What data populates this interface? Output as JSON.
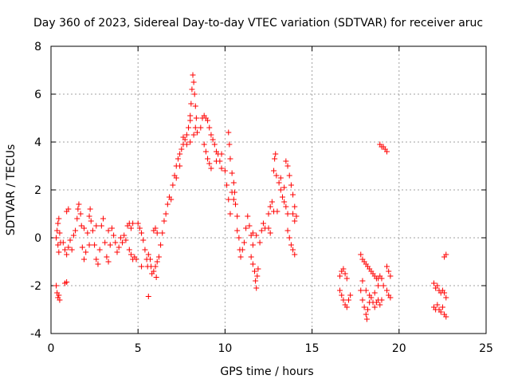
{
  "chart_data": {
    "type": "scatter",
    "title": "Day 360 of 2023, Sidereal Day-to-day VTEC variation (SDTVAR) for receiver aruc",
    "xlabel": "GPS time / hours",
    "ylabel": "SDTVAR / TECUs",
    "xlim": [
      0,
      25
    ],
    "ylim": [
      -4,
      8
    ],
    "xticks": [
      0,
      5,
      10,
      15,
      20,
      25
    ],
    "yticks": [
      -4,
      -2,
      0,
      2,
      4,
      6,
      8
    ],
    "xtick_labels": [
      "0",
      "5",
      "10",
      "15",
      "20",
      "25"
    ],
    "ytick_labels": [
      "-4",
      "-2",
      "0",
      "2",
      "4",
      "6",
      "8"
    ],
    "grid": true,
    "marker": "plus",
    "color": "#ff0000",
    "series": [
      {
        "name": "SDTVAR",
        "points": [
          [
            0.3,
            -2.0
          ],
          [
            0.35,
            -2.3
          ],
          [
            0.4,
            -2.5
          ],
          [
            0.45,
            -2.4
          ],
          [
            0.5,
            -2.6
          ],
          [
            0.8,
            -1.9
          ],
          [
            0.9,
            -1.85
          ],
          [
            0.3,
            0.0
          ],
          [
            0.35,
            0.3
          ],
          [
            0.4,
            0.6
          ],
          [
            0.45,
            0.8
          ],
          [
            0.4,
            -0.3
          ],
          [
            0.45,
            -0.6
          ],
          [
            0.5,
            0.2
          ],
          [
            0.55,
            -0.2
          ],
          [
            0.7,
            -0.2
          ],
          [
            0.8,
            -0.5
          ],
          [
            0.9,
            -0.7
          ],
          [
            1.0,
            -0.4
          ],
          [
            1.1,
            -0.1
          ],
          [
            1.2,
            -0.5
          ],
          [
            1.3,
            0.1
          ],
          [
            1.4,
            0.3
          ],
          [
            1.5,
            0.8
          ],
          [
            1.55,
            1.2
          ],
          [
            1.6,
            1.4
          ],
          [
            1.7,
            1.0
          ],
          [
            1.75,
            0.5
          ],
          [
            1.8,
            -0.4
          ],
          [
            1.9,
            -0.9
          ],
          [
            2.0,
            -0.6
          ],
          [
            2.1,
            0.2
          ],
          [
            2.2,
            0.9
          ],
          [
            2.25,
            1.2
          ],
          [
            2.3,
            0.7
          ],
          [
            2.4,
            0.3
          ],
          [
            2.5,
            -0.3
          ],
          [
            2.6,
            -0.9
          ],
          [
            2.7,
            -1.1
          ],
          [
            2.8,
            -0.5
          ],
          [
            2.9,
            0.5
          ],
          [
            3.0,
            0.8
          ],
          [
            3.1,
            -0.2
          ],
          [
            3.2,
            -0.8
          ],
          [
            3.3,
            -1.0
          ],
          [
            3.4,
            -0.3
          ],
          [
            3.5,
            0.4
          ],
          [
            3.6,
            0.1
          ],
          [
            3.7,
            -0.2
          ],
          [
            3.8,
            -0.6
          ],
          [
            3.9,
            -0.4
          ],
          [
            4.0,
            0.0
          ],
          [
            4.1,
            -0.2
          ],
          [
            4.2,
            0.1
          ],
          [
            4.3,
            -0.1
          ],
          [
            2.2,
            -0.3
          ],
          [
            2.6,
            0.5
          ],
          [
            3.3,
            0.3
          ],
          [
            1.9,
            0.4
          ],
          [
            0.9,
            1.1
          ],
          [
            1.0,
            1.2
          ],
          [
            4.4,
            0.5
          ],
          [
            4.5,
            0.6
          ],
          [
            4.6,
            0.4
          ],
          [
            4.7,
            0.6
          ],
          [
            4.5,
            -0.5
          ],
          [
            4.6,
            -0.7
          ],
          [
            4.7,
            -0.9
          ],
          [
            4.8,
            -0.8
          ],
          [
            4.9,
            -0.9
          ],
          [
            5.0,
            0.6
          ],
          [
            5.1,
            0.4
          ],
          [
            5.2,
            0.2
          ],
          [
            5.3,
            -0.1
          ],
          [
            5.4,
            -0.5
          ],
          [
            5.5,
            -0.9
          ],
          [
            5.55,
            -1.2
          ],
          [
            5.6,
            -0.7
          ],
          [
            5.7,
            -0.9
          ],
          [
            5.75,
            -1.2
          ],
          [
            5.8,
            -1.5
          ],
          [
            5.9,
            -1.4
          ],
          [
            6.0,
            -1.2
          ],
          [
            6.05,
            -1.65
          ],
          [
            6.1,
            -1.0
          ],
          [
            5.2,
            -1.2
          ],
          [
            5.6,
            -2.45
          ],
          [
            5.9,
            0.3
          ],
          [
            6.0,
            0.4
          ],
          [
            6.1,
            0.2
          ],
          [
            6.2,
            -0.8
          ],
          [
            6.3,
            -0.3
          ],
          [
            6.4,
            0.2
          ],
          [
            6.5,
            0.7
          ],
          [
            6.6,
            1.0
          ],
          [
            6.7,
            1.4
          ],
          [
            6.8,
            1.7
          ],
          [
            6.9,
            1.6
          ],
          [
            7.0,
            2.2
          ],
          [
            7.1,
            2.6
          ],
          [
            7.2,
            3.0
          ],
          [
            7.3,
            3.3
          ],
          [
            7.4,
            3.5
          ],
          [
            7.5,
            3.7
          ],
          [
            7.6,
            3.9
          ],
          [
            7.7,
            4.1
          ],
          [
            7.8,
            4.3
          ],
          [
            7.9,
            4.6
          ],
          [
            8.0,
            5.1
          ],
          [
            8.05,
            5.6
          ],
          [
            8.1,
            6.2
          ],
          [
            8.15,
            6.8
          ],
          [
            8.2,
            6.5
          ],
          [
            8.25,
            6.0
          ],
          [
            8.3,
            5.5
          ],
          [
            8.35,
            5.0
          ],
          [
            7.6,
            4.2
          ],
          [
            7.8,
            3.9
          ],
          [
            8.0,
            4.0
          ],
          [
            8.2,
            4.3
          ],
          [
            8.3,
            4.6
          ],
          [
            8.4,
            4.4
          ],
          [
            7.2,
            2.5
          ],
          [
            7.4,
            3.0
          ],
          [
            8.0,
            4.9
          ],
          [
            8.6,
            4.6
          ],
          [
            8.7,
            5.0
          ],
          [
            8.8,
            5.1
          ],
          [
            8.9,
            5.0
          ],
          [
            9.0,
            4.9
          ],
          [
            9.1,
            4.6
          ],
          [
            9.2,
            4.3
          ],
          [
            9.3,
            4.1
          ],
          [
            9.4,
            3.9
          ],
          [
            9.5,
            3.6
          ],
          [
            9.6,
            3.5
          ],
          [
            9.7,
            3.2
          ],
          [
            9.8,
            2.9
          ],
          [
            8.8,
            3.9
          ],
          [
            8.9,
            3.6
          ],
          [
            9.0,
            3.3
          ],
          [
            9.1,
            3.1
          ],
          [
            9.2,
            2.9
          ],
          [
            9.5,
            3.2
          ],
          [
            9.8,
            3.5
          ],
          [
            10.0,
            2.8
          ],
          [
            10.1,
            2.2
          ],
          [
            10.2,
            1.6
          ],
          [
            10.3,
            1.0
          ],
          [
            10.2,
            4.4
          ],
          [
            10.25,
            3.9
          ],
          [
            10.3,
            3.3
          ],
          [
            10.4,
            2.7
          ],
          [
            10.5,
            2.3
          ],
          [
            10.55,
            1.9
          ],
          [
            10.6,
            1.4
          ],
          [
            10.7,
            0.9
          ],
          [
            10.4,
            1.9
          ],
          [
            10.5,
            1.6
          ],
          [
            10.7,
            0.3
          ],
          [
            10.8,
            0.0
          ],
          [
            10.85,
            -0.5
          ],
          [
            10.9,
            -0.8
          ],
          [
            11.0,
            -0.5
          ],
          [
            11.1,
            -0.2
          ],
          [
            11.2,
            0.4
          ],
          [
            11.3,
            0.9
          ],
          [
            11.4,
            0.5
          ],
          [
            11.5,
            0.1
          ],
          [
            11.6,
            -0.3
          ],
          [
            11.5,
            -0.8
          ],
          [
            11.6,
            -1.1
          ],
          [
            11.7,
            -1.4
          ],
          [
            11.75,
            -1.8
          ],
          [
            11.8,
            -2.1
          ],
          [
            11.85,
            -1.6
          ],
          [
            11.9,
            -1.3
          ],
          [
            11.6,
            0.2
          ],
          [
            11.8,
            0.1
          ],
          [
            12.1,
            0.3
          ],
          [
            12.2,
            0.6
          ],
          [
            12.3,
            0.4
          ],
          [
            12.0,
            -0.2
          ],
          [
            12.5,
            0.4
          ],
          [
            12.6,
            0.2
          ],
          [
            12.5,
            1.0
          ],
          [
            12.6,
            1.3
          ],
          [
            12.7,
            1.5
          ],
          [
            12.8,
            2.8
          ],
          [
            12.85,
            3.3
          ],
          [
            12.9,
            3.5
          ],
          [
            12.95,
            2.6
          ],
          [
            12.8,
            1.1
          ],
          [
            13.0,
            1.1
          ],
          [
            13.1,
            2.3
          ],
          [
            13.2,
            2.0
          ],
          [
            13.3,
            1.7
          ],
          [
            13.4,
            1.5
          ],
          [
            13.5,
            1.3
          ],
          [
            13.6,
            1.0
          ],
          [
            13.2,
            2.5
          ],
          [
            13.4,
            2.1
          ],
          [
            13.5,
            3.2
          ],
          [
            13.6,
            3.0
          ],
          [
            13.7,
            2.6
          ],
          [
            13.8,
            2.2
          ],
          [
            13.9,
            1.8
          ],
          [
            14.0,
            1.3
          ],
          [
            14.1,
            0.9
          ],
          [
            13.6,
            0.3
          ],
          [
            13.7,
            0.0
          ],
          [
            13.8,
            -0.3
          ],
          [
            13.9,
            -0.5
          ],
          [
            14.0,
            -0.7
          ],
          [
            13.9,
            1.0
          ],
          [
            14.0,
            0.7
          ],
          [
            16.6,
            -1.6
          ],
          [
            16.7,
            -1.4
          ],
          [
            16.8,
            -1.3
          ],
          [
            16.9,
            -1.5
          ],
          [
            17.0,
            -1.7
          ],
          [
            16.6,
            -2.2
          ],
          [
            16.7,
            -2.4
          ],
          [
            16.8,
            -2.6
          ],
          [
            16.9,
            -2.8
          ],
          [
            17.0,
            -2.9
          ],
          [
            17.1,
            -2.6
          ],
          [
            17.2,
            -2.4
          ],
          [
            17.8,
            -0.7
          ],
          [
            17.9,
            -0.9
          ],
          [
            18.0,
            -1.0
          ],
          [
            18.1,
            -1.1
          ],
          [
            18.2,
            -1.2
          ],
          [
            18.3,
            -1.3
          ],
          [
            18.4,
            -1.4
          ],
          [
            18.5,
            -1.5
          ],
          [
            18.6,
            -1.6
          ],
          [
            18.7,
            -1.7
          ],
          [
            18.8,
            -1.7
          ],
          [
            18.9,
            -1.6
          ],
          [
            19.0,
            -1.7
          ],
          [
            17.8,
            -2.2
          ],
          [
            17.9,
            -2.6
          ],
          [
            18.0,
            -2.9
          ],
          [
            18.1,
            -3.2
          ],
          [
            18.15,
            -3.4
          ],
          [
            18.2,
            -3.0
          ],
          [
            18.3,
            -2.7
          ],
          [
            18.4,
            -2.5
          ],
          [
            18.5,
            -2.7
          ],
          [
            18.6,
            -2.9
          ],
          [
            18.7,
            -2.7
          ],
          [
            18.8,
            -2.6
          ],
          [
            18.9,
            -2.8
          ],
          [
            19.0,
            -2.6
          ],
          [
            17.9,
            -1.8
          ],
          [
            18.1,
            -2.2
          ],
          [
            18.3,
            -2.4
          ],
          [
            18.6,
            -2.3
          ],
          [
            18.8,
            -2.0
          ],
          [
            19.1,
            -2.0
          ],
          [
            19.3,
            -1.2
          ],
          [
            19.4,
            -1.4
          ],
          [
            19.5,
            -1.6
          ],
          [
            19.3,
            -2.2
          ],
          [
            19.4,
            -2.4
          ],
          [
            19.5,
            -2.5
          ],
          [
            18.9,
            3.9
          ],
          [
            19.0,
            3.8
          ],
          [
            19.1,
            3.8
          ],
          [
            19.2,
            3.7
          ],
          [
            19.3,
            3.6
          ],
          [
            22.0,
            -1.9
          ],
          [
            22.1,
            -2.1
          ],
          [
            22.2,
            -2.0
          ],
          [
            22.3,
            -2.2
          ],
          [
            22.4,
            -2.3
          ],
          [
            22.5,
            -2.2
          ],
          [
            22.6,
            -2.3
          ],
          [
            22.7,
            -2.5
          ],
          [
            22.0,
            -2.9
          ],
          [
            22.1,
            -3.0
          ],
          [
            22.2,
            -2.8
          ],
          [
            22.3,
            -3.0
          ],
          [
            22.4,
            -3.1
          ],
          [
            22.5,
            -2.9
          ],
          [
            22.6,
            -3.2
          ],
          [
            22.7,
            -3.3
          ],
          [
            22.6,
            -0.8
          ],
          [
            22.7,
            -0.7
          ]
        ]
      }
    ]
  }
}
